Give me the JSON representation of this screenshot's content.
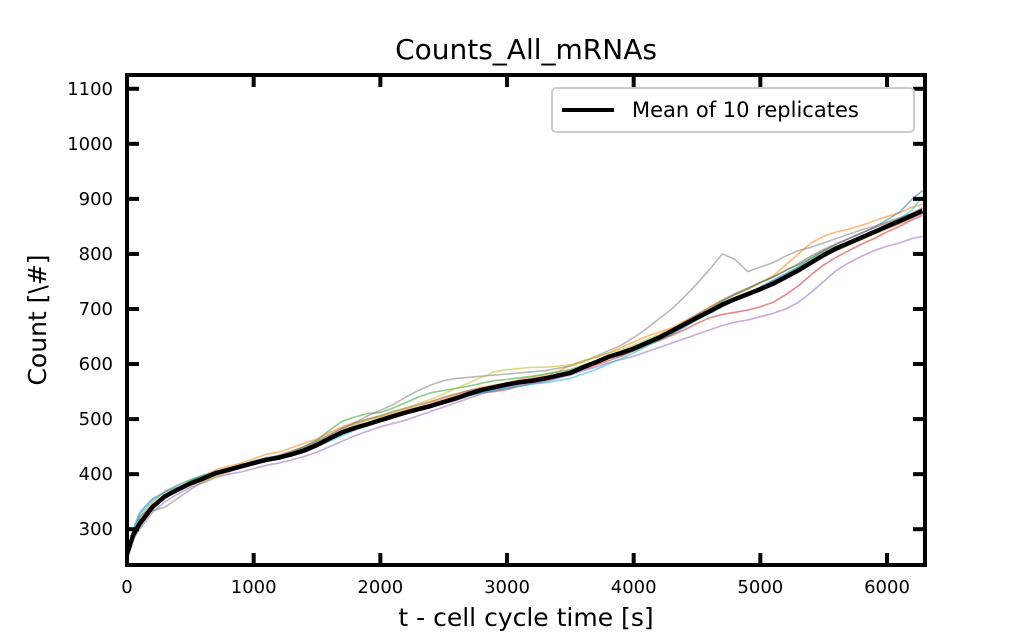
{
  "chart_data": {
    "type": "line",
    "title": "Counts_All_mRNAs",
    "xlabel": "t - cell cycle time [s]",
    "ylabel": "Count [\\#]",
    "xlim": [
      0,
      6300
    ],
    "ylim": [
      235,
      1125
    ],
    "x_ticks": [
      0,
      1000,
      2000,
      3000,
      4000,
      5000,
      6000
    ],
    "y_ticks": [
      300,
      400,
      500,
      600,
      700,
      800,
      900,
      1000,
      1100
    ],
    "legend": {
      "position": "top-right",
      "entries": [
        "Mean of 10 replicates"
      ]
    },
    "grid": false,
    "x": [
      0,
      50,
      100,
      200,
      300,
      400,
      500,
      600,
      700,
      800,
      900,
      1000,
      1100,
      1200,
      1300,
      1400,
      1500,
      1600,
      1700,
      1800,
      1900,
      2000,
      2100,
      2200,
      2300,
      2400,
      2500,
      2600,
      2700,
      2800,
      2900,
      3000,
      3100,
      3200,
      3300,
      3400,
      3500,
      3600,
      3700,
      3800,
      3900,
      4000,
      4100,
      4200,
      4300,
      4400,
      4500,
      4600,
      4700,
      4800,
      4900,
      5000,
      5100,
      5200,
      5300,
      5400,
      5500,
      5600,
      5700,
      5800,
      5900,
      6000,
      6100,
      6200,
      6280
    ],
    "series": [
      {
        "name": "Mean of 10 replicates",
        "color": "#000000",
        "values": [
          255,
          290,
          310,
          340,
          360,
          372,
          383,
          392,
          402,
          408,
          414,
          420,
          426,
          430,
          436,
          443,
          453,
          465,
          476,
          484,
          491,
          498,
          505,
          512,
          518,
          524,
          531,
          538,
          546,
          553,
          558,
          563,
          567,
          570,
          574,
          579,
          584,
          594,
          603,
          613,
          620,
          628,
          638,
          648,
          660,
          672,
          684,
          696,
          708,
          718,
          727,
          736,
          746,
          758,
          770,
          784,
          798,
          810,
          820,
          830,
          840,
          850,
          860,
          870,
          878
        ]
      },
      {
        "color": "#1f77b4",
        "values": [
          260,
          300,
          330,
          355,
          368,
          376,
          386,
          396,
          404,
          410,
          416,
          424,
          430,
          433,
          440,
          447,
          456,
          466,
          474,
          482,
          490,
          498,
          506,
          514,
          520,
          526,
          530,
          536,
          543,
          548,
          553,
          558,
          563,
          567,
          571,
          577,
          583,
          592,
          601,
          611,
          616,
          625,
          636,
          644,
          654,
          667,
          681,
          693,
          705,
          716,
          726,
          740,
          752,
          764,
          776,
          792,
          806,
          818,
          828,
          838,
          848,
          862,
          876,
          900,
          915
        ]
      },
      {
        "color": "#ff7f0e",
        "values": [
          250,
          285,
          318,
          348,
          369,
          380,
          390,
          397,
          408,
          414,
          420,
          428,
          436,
          440,
          448,
          456,
          464,
          476,
          486,
          494,
          500,
          505,
          510,
          518,
          522,
          530,
          537,
          544,
          552,
          558,
          562,
          566,
          572,
          576,
          580,
          586,
          598,
          606,
          612,
          620,
          630,
          640,
          650,
          658,
          666,
          678,
          690,
          704,
          716,
          726,
          736,
          748,
          760,
          780,
          800,
          820,
          832,
          840,
          845,
          852,
          860,
          868,
          875,
          885,
          890
        ]
      },
      {
        "color": "#2ca02c",
        "values": [
          248,
          288,
          312,
          342,
          360,
          374,
          388,
          398,
          404,
          410,
          418,
          422,
          428,
          432,
          440,
          450,
          462,
          480,
          496,
          504,
          510,
          512,
          520,
          530,
          540,
          548,
          552,
          556,
          560,
          565,
          570,
          572,
          575,
          578,
          582,
          586,
          590,
          598,
          606,
          612,
          618,
          624,
          634,
          644,
          656,
          670,
          684,
          698,
          714,
          726,
          736,
          748,
          758,
          770,
          780,
          792,
          804,
          814,
          822,
          830,
          840,
          848,
          856,
          866,
          880
        ]
      },
      {
        "color": "#d62728",
        "values": [
          252,
          292,
          316,
          338,
          358,
          370,
          380,
          390,
          398,
          404,
          412,
          418,
          424,
          430,
          436,
          444,
          452,
          462,
          474,
          484,
          490,
          496,
          504,
          510,
          516,
          522,
          530,
          538,
          544,
          548,
          550,
          554,
          560,
          566,
          570,
          576,
          582,
          590,
          598,
          606,
          614,
          624,
          634,
          642,
          652,
          662,
          674,
          684,
          690,
          694,
          698,
          704,
          712,
          726,
          742,
          762,
          780,
          794,
          806,
          818,
          828,
          840,
          850,
          862,
          870
        ]
      },
      {
        "color": "#9467bd",
        "values": [
          246,
          282,
          300,
          330,
          350,
          364,
          376,
          384,
          394,
          400,
          404,
          410,
          416,
          420,
          426,
          432,
          440,
          450,
          460,
          470,
          478,
          486,
          492,
          498,
          506,
          514,
          522,
          530,
          538,
          546,
          552,
          556,
          560,
          564,
          568,
          574,
          580,
          588,
          594,
          602,
          608,
          614,
          622,
          630,
          638,
          646,
          654,
          662,
          670,
          676,
          680,
          686,
          692,
          700,
          712,
          730,
          750,
          770,
          784,
          796,
          806,
          814,
          820,
          828,
          832
        ]
      },
      {
        "color": "#8c564b",
        "values": [
          254,
          294,
          322,
          344,
          362,
          374,
          384,
          394,
          402,
          408,
          416,
          422,
          428,
          434,
          442,
          450,
          460,
          472,
          484,
          492,
          500,
          506,
          514,
          520,
          526,
          532,
          540,
          546,
          552,
          556,
          560,
          564,
          568,
          572,
          576,
          582,
          588,
          596,
          604,
          612,
          620,
          630,
          640,
          650,
          662,
          676,
          690,
          702,
          716,
          728,
          738,
          748,
          758,
          770,
          782,
          796,
          808,
          818,
          828,
          838,
          848,
          856,
          864,
          874,
          884
        ]
      },
      {
        "color": "#e377c2",
        "values": [
          250,
          286,
          314,
          340,
          356,
          370,
          382,
          392,
          400,
          406,
          412,
          418,
          426,
          432,
          438,
          446,
          456,
          466,
          478,
          486,
          492,
          498,
          504,
          510,
          516,
          522,
          528,
          534,
          542,
          550,
          554,
          558,
          562,
          566,
          570,
          576,
          582,
          590,
          600,
          610,
          618,
          626,
          636,
          646,
          658,
          670,
          682,
          694,
          706,
          716,
          726,
          736,
          746,
          758,
          770,
          782,
          794,
          806,
          818,
          828,
          838,
          846,
          854,
          864,
          872
        ]
      },
      {
        "color": "#7f7f7f",
        "values": [
          256,
          296,
          318,
          334,
          340,
          356,
          372,
          386,
          398,
          406,
          414,
          420,
          428,
          434,
          440,
          448,
          458,
          470,
          482,
          494,
          506,
          516,
          526,
          540,
          552,
          562,
          570,
          574,
          576,
          578,
          580,
          582,
          584,
          586,
          588,
          592,
          596,
          604,
          614,
          624,
          634,
          648,
          664,
          682,
          700,
          722,
          746,
          772,
          800,
          790,
          768,
          776,
          784,
          796,
          806,
          812,
          820,
          828,
          836,
          844,
          850,
          858,
          866,
          874,
          882
        ]
      },
      {
        "color": "#bcbd22",
        "values": [
          244,
          280,
          306,
          336,
          356,
          372,
          380,
          386,
          396,
          404,
          412,
          420,
          428,
          432,
          438,
          446,
          456,
          468,
          480,
          490,
          498,
          504,
          512,
          520,
          528,
          536,
          546,
          556,
          566,
          576,
          586,
          590,
          592,
          594,
          594,
          596,
          598,
          604,
          612,
          620,
          626,
          634,
          644,
          654,
          664,
          676,
          688,
          700,
          710,
          718,
          726,
          736,
          748,
          760,
          772,
          784,
          796,
          806,
          816,
          826,
          836,
          846,
          856,
          866,
          874
        ]
      },
      {
        "color": "#17becf",
        "values": [
          258,
          298,
          326,
          352,
          368,
          380,
          390,
          398,
          404,
          410,
          416,
          422,
          428,
          432,
          436,
          442,
          450,
          460,
          470,
          480,
          488,
          496,
          504,
          512,
          518,
          524,
          530,
          536,
          542,
          548,
          552,
          556,
          560,
          564,
          566,
          570,
          574,
          582,
          590,
          600,
          610,
          620,
          632,
          644,
          656,
          668,
          680,
          692,
          704,
          716,
          728,
          740,
          752,
          764,
          776,
          788,
          800,
          810,
          820,
          830,
          842,
          852,
          864,
          880,
          905
        ]
      }
    ]
  }
}
